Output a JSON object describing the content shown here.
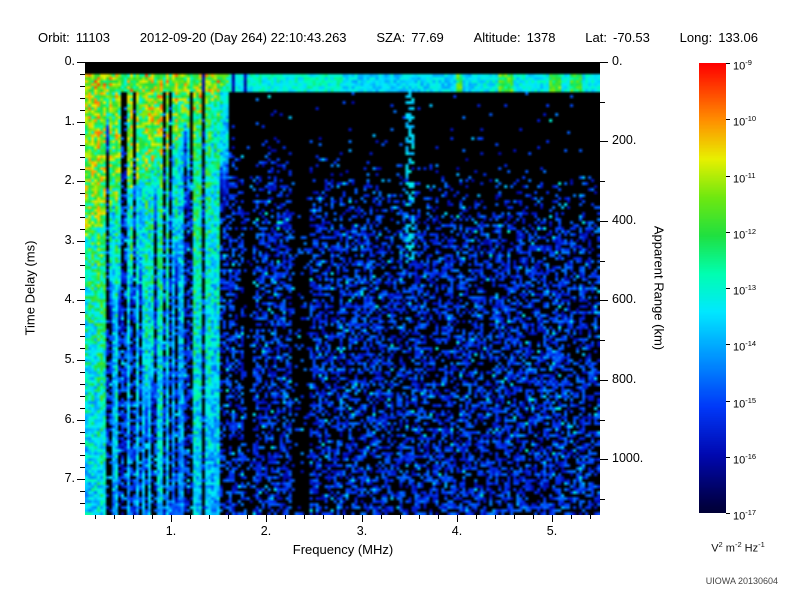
{
  "header": {
    "fields": [
      {
        "label": "Orbit:",
        "value": "11103"
      },
      {
        "label": "",
        "value": "2012-09-20 (Day 264) 22:10:43.263"
      },
      {
        "label": "SZA:",
        "value": "77.69"
      },
      {
        "label": "Altitude:",
        "value": "1378"
      },
      {
        "label": "Lat:",
        "value": "-70.53"
      },
      {
        "label": "Long:",
        "value": "133.06"
      }
    ]
  },
  "footer": {
    "credit": "UIOWA 20130604"
  },
  "chart_data": {
    "type": "heatmap",
    "title": "Radar sounder ionogram (spectral density vs frequency and time delay)",
    "description": "Bright surface-echo band near 0.3 ms delay across all frequencies; dense green interference/plasma vertical stripes below ~1.5 MHz, many extending full depth; diffuse blue noise floor growing with delay; mostly black upper-right region; dark vertical gaps near 1.8 and 2.35 MHz; faint vertical trace near 3.5 MHz.",
    "x_axis": {
      "label": "Frequency (MHz)",
      "min": 0.1,
      "max": 5.5,
      "major_ticks": [
        1,
        2,
        3,
        4,
        5
      ],
      "major_tick_labels": [
        "1.",
        "2.",
        "3.",
        "4.",
        "5."
      ],
      "minor_tick_step": 0.2
    },
    "y_axis_left": {
      "label": "Time Delay (ms)",
      "min": 0,
      "max": 7.6,
      "major_ticks": [
        0,
        1,
        2,
        3,
        4,
        5,
        6,
        7
      ],
      "major_tick_labels": [
        "0.",
        "1.",
        "2.",
        "3.",
        "4.",
        "5.",
        "6.",
        "7."
      ],
      "minor_tick_step": 0.2
    },
    "y_axis_right": {
      "label": "Apparent Range (km)",
      "min": 0,
      "max": 1140,
      "major_ticks": [
        0,
        200,
        400,
        600,
        800,
        1000
      ],
      "major_tick_labels": [
        "0.",
        "200.",
        "400.",
        "600.",
        "800.",
        "1000."
      ],
      "minor_tick_step": 100
    },
    "colorbar": {
      "scale": "log",
      "tick_exponents": [
        -9,
        -10,
        -11,
        -12,
        -13,
        -14,
        -15,
        -16,
        -17
      ],
      "unit_parts": [
        [
          "V",
          "2"
        ],
        [
          "m",
          "-2"
        ],
        [
          "Hz",
          "-1"
        ]
      ],
      "colormap_stops": [
        [
          0,
          "#000000"
        ],
        [
          0.08,
          "#000048"
        ],
        [
          0.18,
          "#0008b0"
        ],
        [
          0.28,
          "#0038f8"
        ],
        [
          0.38,
          "#0090ff"
        ],
        [
          0.48,
          "#00e8ff"
        ],
        [
          0.56,
          "#00ffb0"
        ],
        [
          0.64,
          "#20e040"
        ],
        [
          0.72,
          "#70e810"
        ],
        [
          0.8,
          "#e8f000"
        ],
        [
          0.88,
          "#ff9000"
        ],
        [
          1,
          "#ff0000"
        ]
      ]
    },
    "features": {
      "seed": 20130604,
      "surface_band_delay_ms": [
        0.18,
        0.52
      ],
      "stripe_freq_max_mhz": 1.5,
      "solid_stripe_freq_max_mhz": 0.33,
      "dark_bands_mhz": [
        [
          1.77,
          1.85
        ],
        [
          2.28,
          2.46
        ]
      ],
      "faint_line_mhz": 3.5
    }
  }
}
